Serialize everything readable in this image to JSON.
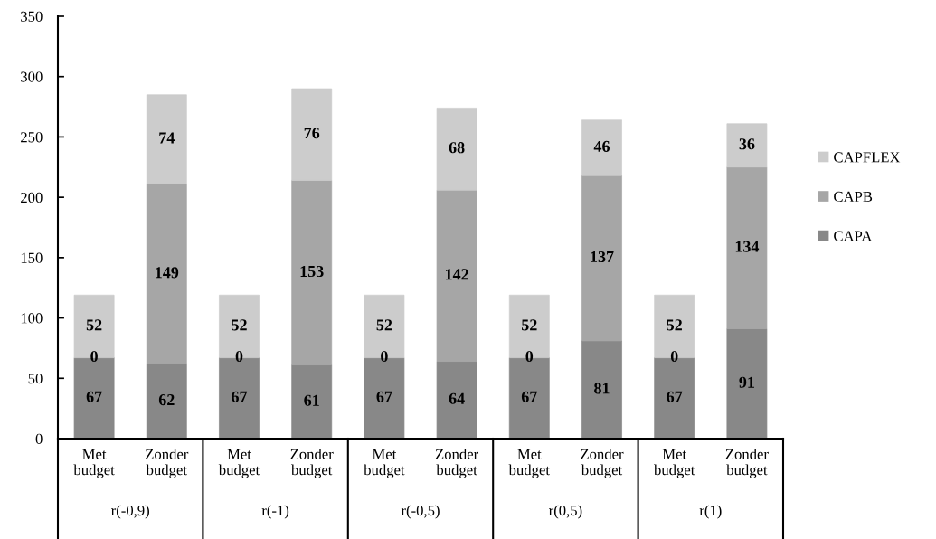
{
  "chart_data": {
    "type": "bar",
    "stacked": true,
    "categories": [
      "Met budget",
      "Zonder budget",
      "Met budget",
      "Zonder budget",
      "Met budget",
      "Zonder budget",
      "Met budget",
      "Zonder budget",
      "Met budget",
      "Zonder budget"
    ],
    "series": [
      {
        "name": "CAPA",
        "color": "#888888",
        "values": [
          67,
          62,
          67,
          61,
          67,
          64,
          67,
          81,
          67,
          91
        ]
      },
      {
        "name": "CAPB",
        "color": "#a6a6a6",
        "values": [
          0,
          149,
          0,
          153,
          0,
          142,
          0,
          137,
          0,
          134
        ]
      },
      {
        "name": "CAPFLEX",
        "color": "#cccccc",
        "values": [
          52,
          74,
          52,
          76,
          52,
          68,
          52,
          46,
          52,
          36
        ]
      }
    ],
    "ylim": [
      0,
      350
    ],
    "yticks": [
      0,
      50,
      100,
      150,
      200,
      250,
      300,
      350
    ],
    "legend": "right",
    "data_labels": true,
    "annotations": [
      "r(-0,9)",
      "r(-1)",
      "r(-0,5)",
      "r(0,5)",
      "r(1)"
    ]
  }
}
